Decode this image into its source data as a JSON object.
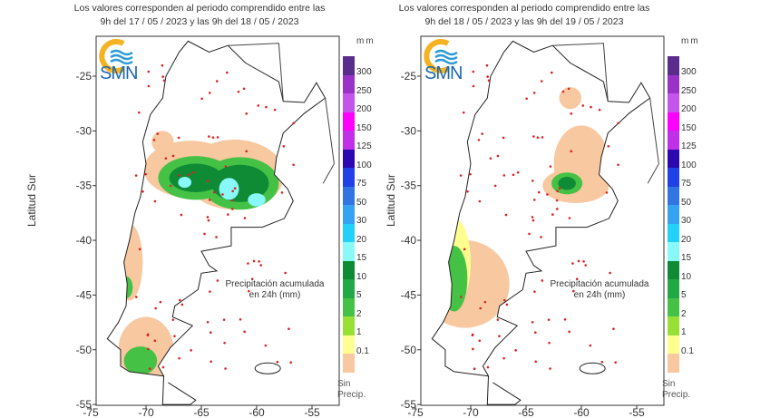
{
  "maps": [
    {
      "title_line1": "Los valores corresponden al periodo comprendido entre las",
      "title_line2": "9h del 17 / 05 / 2023  y las 9h del 18 / 05 / 2023"
    },
    {
      "title_line1": "Los valores corresponden al periodo comprendido entre las",
      "title_line2": "9h del 18 / 05 / 2023  y las 9h del 19 / 05 / 2023"
    }
  ],
  "logo_text": "SMN",
  "y_axis_label": "Latitud Sur",
  "x_ticks": [
    "-75",
    "-70",
    "-65",
    "-60",
    "-55"
  ],
  "y_ticks": [
    "-25",
    "-30",
    "-35",
    "-40",
    "-45",
    "-50",
    "-55"
  ],
  "caption_line1": "Precipitación acumulada",
  "caption_line2": "en 24h (mm)",
  "legend": {
    "unit": "mm",
    "levels": [
      {
        "label": "300",
        "color": "#5a2d8c"
      },
      {
        "label": "250",
        "color": "#9a32c8"
      },
      {
        "label": "200",
        "color": "#c455ea"
      },
      {
        "label": "150",
        "color": "#ff00ff"
      },
      {
        "label": "125",
        "color": "#c030e8"
      },
      {
        "label": "100",
        "color": "#2c08b0"
      },
      {
        "label": "75",
        "color": "#2040e8"
      },
      {
        "label": "50",
        "color": "#3274e2"
      },
      {
        "label": "30",
        "color": "#35a2f2"
      },
      {
        "label": "20",
        "color": "#22d0f8"
      },
      {
        "label": "15",
        "color": "#88f8f8"
      },
      {
        "label": "10",
        "color": "#0f8a35"
      },
      {
        "label": "5",
        "color": "#22a845"
      },
      {
        "label": "2",
        "color": "#45c245"
      },
      {
        "label": "1",
        "color": "#98e035"
      },
      {
        "label": "0.1",
        "color": "#ffff90"
      },
      {
        "label": "",
        "color": "#f8c8a0"
      }
    ],
    "no_precip_line1": "Sin",
    "no_precip_line2": "Precip."
  }
}
